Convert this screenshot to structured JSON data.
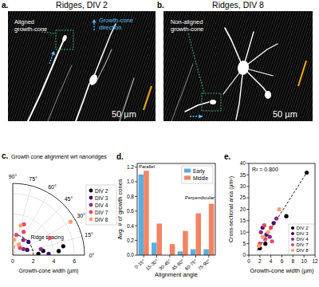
{
  "panels": [
    {
      "panel_label": "a.",
      "title": "Ridges, DIV 2",
      "annotations": [
        "Aligned growth-cone",
        "Growth-cone direction"
      ],
      "scale_bar": "50 µm"
    },
    {
      "panel_label": "b.",
      "title": "Ridges, DIV 8",
      "annotations": [
        "Non-aligned growth-cone"
      ],
      "scale_bar": "50 µm"
    }
  ],
  "chart_data": [
    {
      "type": "polar_scatter",
      "panel_label": "c.",
      "title": "Growth cone alignment wrt nanoridges",
      "y_label": "Growth-cone width (µm)",
      "xlim": [
        0,
        90
      ],
      "xticks": [
        {
          "value": 0,
          "label": "0°"
        },
        {
          "value": 15,
          "label": "15°"
        },
        {
          "value": 30,
          "label": "30°"
        },
        {
          "value": 45,
          "label": "45°"
        },
        {
          "value": 60,
          "label": "60°"
        },
        {
          "value": 75,
          "label": "75°"
        },
        {
          "value": 90,
          "label": "90°"
        }
      ],
      "ylim": [
        0,
        7
      ],
      "yticks": [
        0,
        2,
        4,
        6
      ],
      "grid": true,
      "legend": "right",
      "reference": {
        "value": 2,
        "label": "Ridge spacing"
      },
      "series": [
        {
          "name": "DIV 2",
          "color": "#000004",
          "x": [
            5,
            3,
            8,
            10
          ],
          "values": [
            4.5,
            2.5,
            3,
            5
          ]
        },
        {
          "name": "DIV 3",
          "color": "#3b0f70",
          "x": [
            20,
            40,
            2
          ],
          "values": [
            1.5,
            2,
            3.5
          ]
        },
        {
          "name": "DIV 4",
          "color": "#8c2981",
          "x": [
            30,
            55,
            12
          ],
          "values": [
            1.2,
            1.8,
            2.8
          ]
        },
        {
          "name": "DIV 7",
          "color": "#de4968",
          "x": [
            45,
            65,
            80,
            70,
            25
          ],
          "values": [
            1,
            2.5,
            2,
            3.2,
            4
          ]
        },
        {
          "name": "DIV 8",
          "color": "#fe9f6d",
          "x": [
            85,
            60,
            88,
            75,
            30
          ],
          "values": [
            1.5,
            1.2,
            0.8,
            3,
            6.5
          ]
        }
      ]
    },
    {
      "type": "bar",
      "panel_label": "d.",
      "x_label": "Alignment angle",
      "y_label": "Avg. # of growth cones",
      "categories": [
        "0-15°",
        "15-30°",
        "30-45°",
        "45-60°",
        "60-75°",
        "75-90°"
      ],
      "series": [
        {
          "name": "Early",
          "color": "#5aaee0",
          "values": [
            1.1,
            0.17,
            0,
            0.05,
            0.08,
            0.08
          ]
        },
        {
          "name": "Middle",
          "color": "#f28462",
          "values": [
            1.15,
            0.43,
            0.15,
            0.33,
            0.57,
            0.7
          ]
        }
      ],
      "ylim": [
        0,
        1.25
      ],
      "yticks": [
        {
          "value": 0,
          "label": "0.0"
        },
        0.2,
        0.4,
        0.6,
        0.8,
        {
          "value": 1,
          "label": "1.0"
        },
        1.2
      ],
      "legend": "upper right",
      "annotations": [
        "Parallel",
        "Perpendicular"
      ]
    },
    {
      "type": "scatter",
      "panel_label": "e.",
      "x_label": "Growth-cone width (µm)",
      "y_label": "Cross-sectional area (µm²)",
      "xlim": [
        0,
        12
      ],
      "xticks": [
        0,
        2,
        4,
        6,
        8,
        10,
        12
      ],
      "ylim": [
        0,
        40
      ],
      "yticks": [
        0,
        5,
        10,
        15,
        20,
        25,
        30,
        35,
        40
      ],
      "legend": "lower right",
      "annotation": "R² = 0.800",
      "fit_line": {
        "x": [
          1.5,
          10.5
        ],
        "values": [
          2,
          36
        ]
      },
      "series": [
        {
          "name": "DIV 2",
          "color": "#000004",
          "x": [
            10.5,
            6.8,
            2,
            3
          ],
          "values": [
            36,
            17,
            3,
            5
          ]
        },
        {
          "name": "DIV 3",
          "color": "#3b0f70",
          "x": [
            2.5,
            3.2,
            4.5
          ],
          "values": [
            12,
            9,
            14
          ]
        },
        {
          "name": "DIV 4",
          "color": "#8c2981",
          "x": [
            2.2,
            3.8,
            5
          ],
          "values": [
            10,
            8,
            16
          ]
        },
        {
          "name": "DIV 7",
          "color": "#de4968",
          "x": [
            2,
            3,
            4,
            4.2,
            2.8
          ],
          "values": [
            5,
            7,
            12,
            6,
            13
          ]
        },
        {
          "name": "DIV 8",
          "color": "#fe9f6d",
          "x": [
            2.5,
            3.5,
            5.5,
            1.8
          ],
          "values": [
            8,
            10,
            20,
            4
          ]
        }
      ]
    }
  ]
}
